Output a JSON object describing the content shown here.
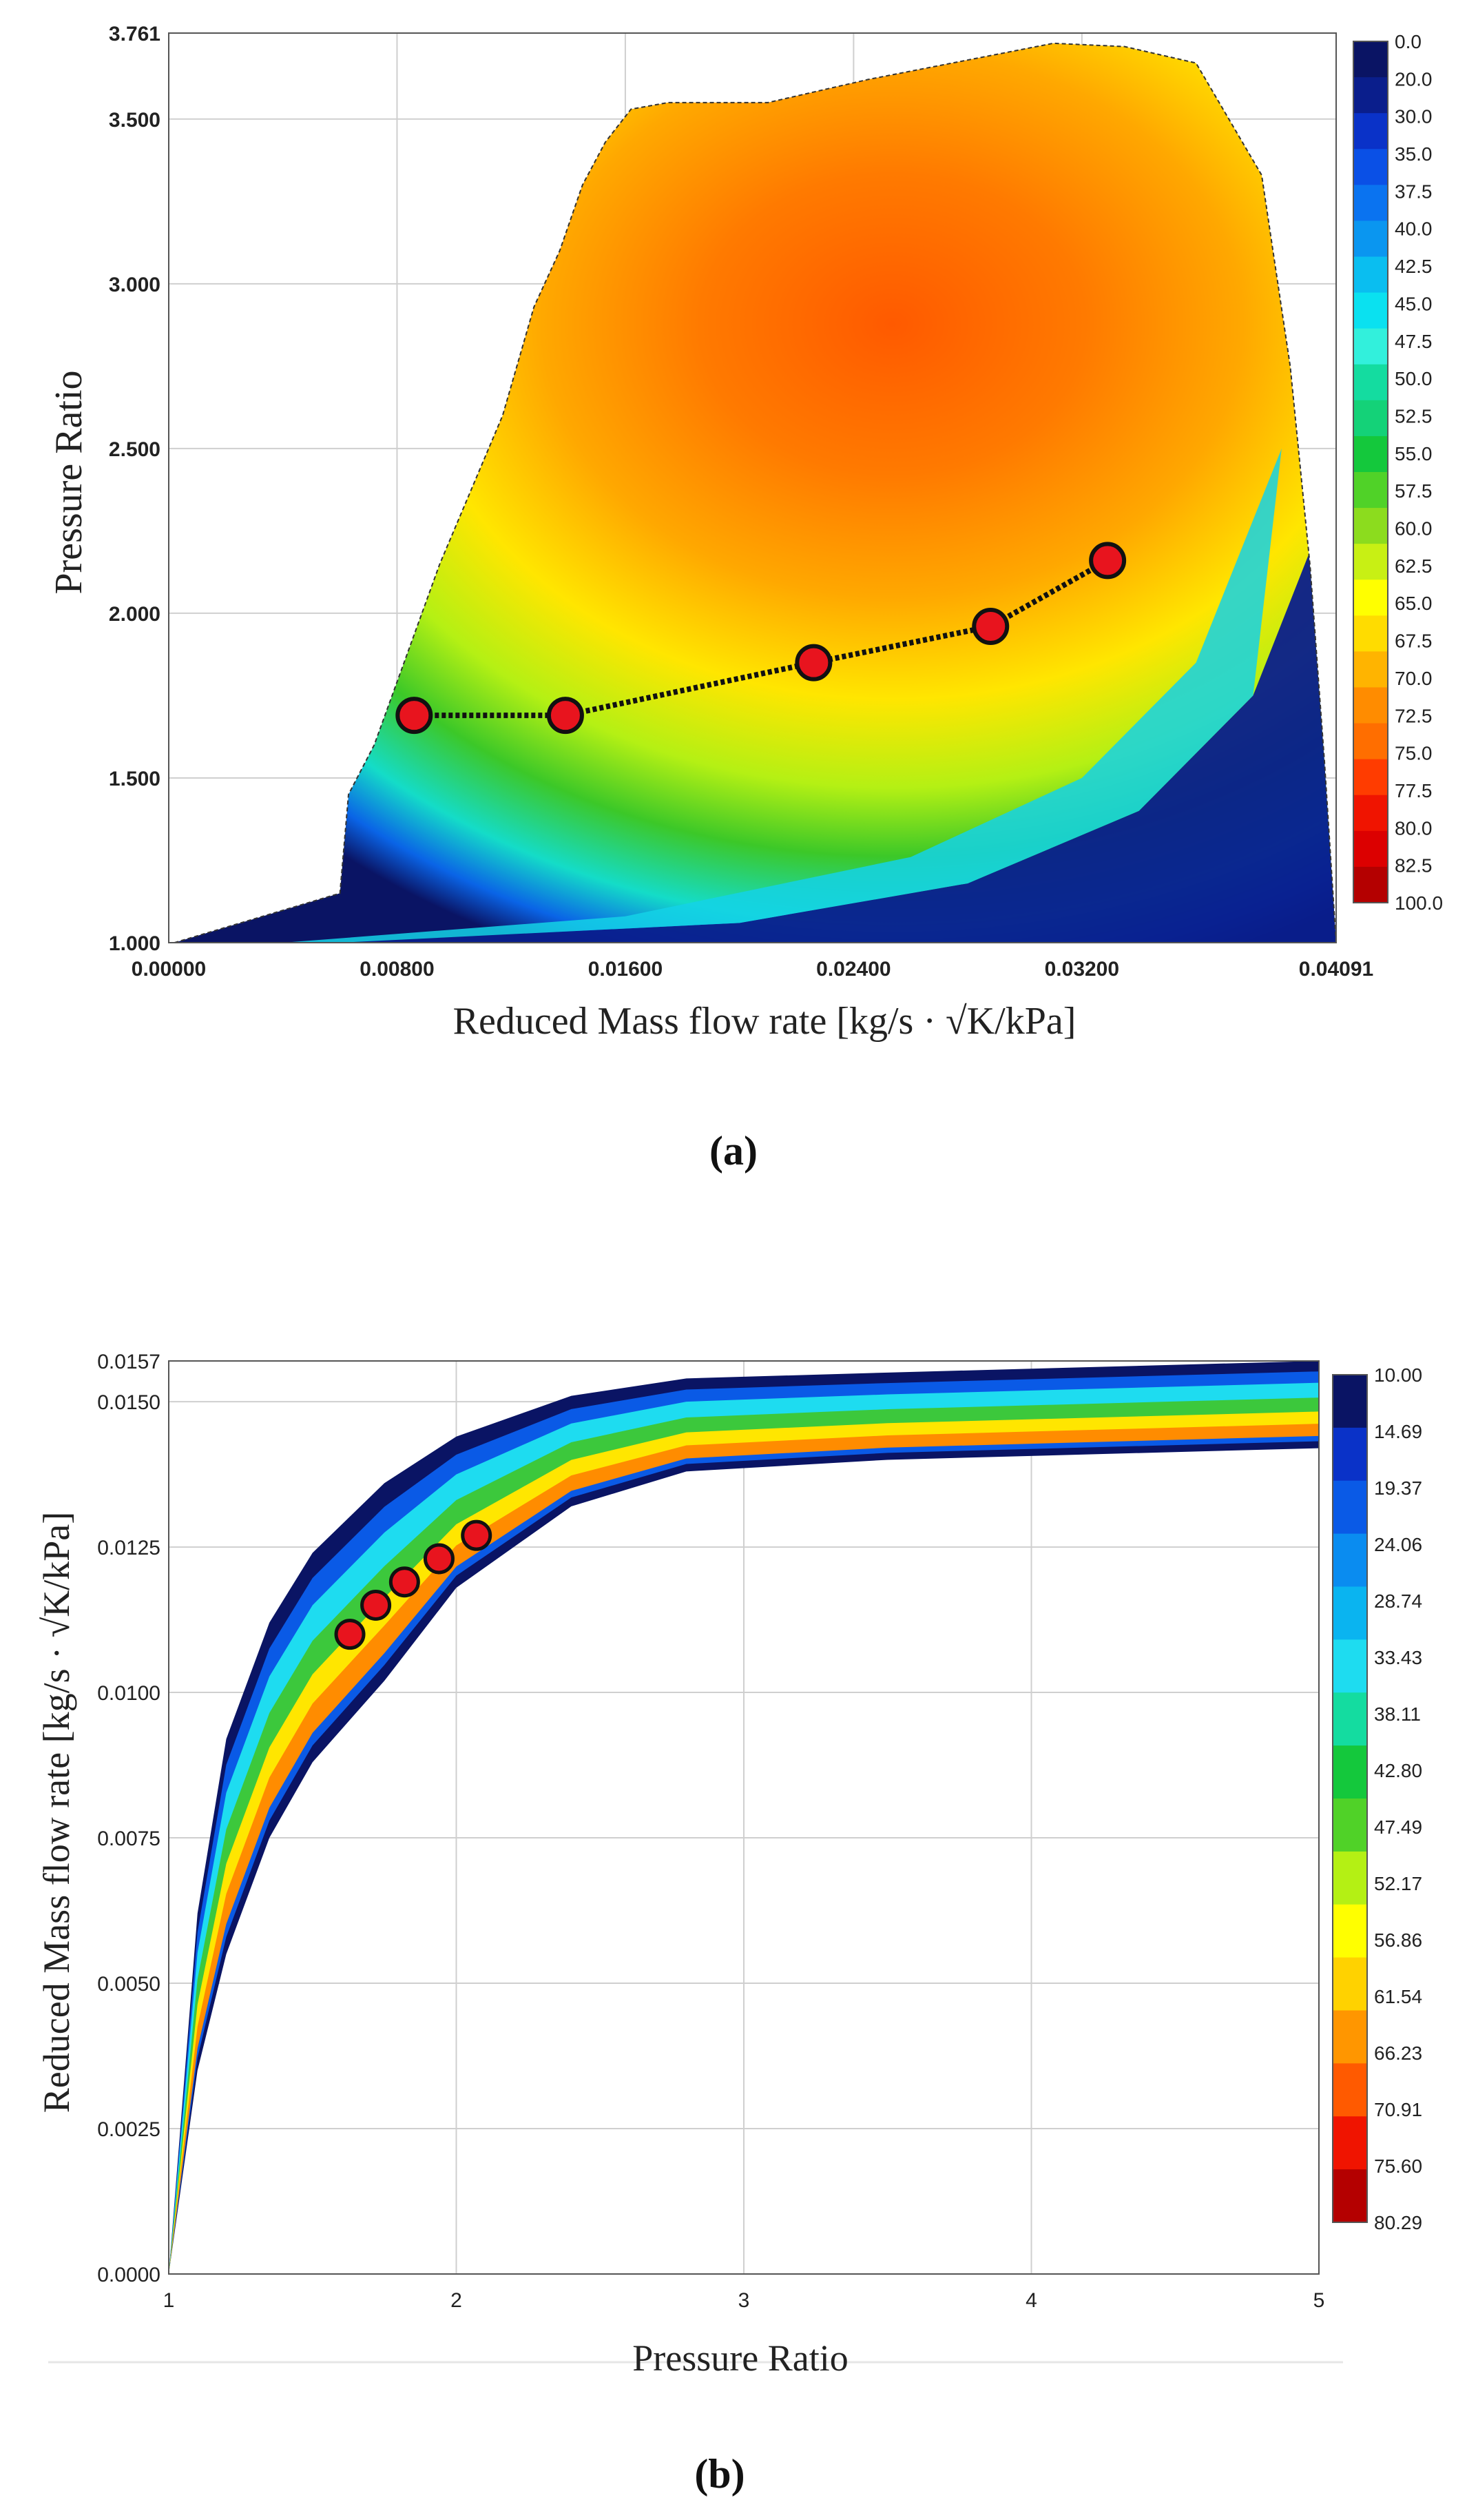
{
  "chart_data": [
    {
      "type": "heatmap",
      "panel_label": "(a)",
      "title": "",
      "xlabel": "Reduced Mass flow rate [kg/s · √K/kPa]",
      "ylabel": "Pressure Ratio",
      "xlim": [
        0.0,
        0.04091
      ],
      "ylim": [
        1.0,
        3.761
      ],
      "x_ticks": [
        0.0,
        0.008,
        0.016,
        0.024,
        0.032,
        0.04091
      ],
      "x_tick_labels": [
        "0.00000",
        "0.00800",
        "0.01600",
        "0.02400",
        "0.03200",
        "0.04091"
      ],
      "y_ticks": [
        1.0,
        1.5,
        2.0,
        2.5,
        3.0,
        3.5,
        3.761
      ],
      "y_tick_labels": [
        "1.000",
        "1.500",
        "2.000",
        "2.500",
        "3.000",
        "3.500",
        "3.761"
      ],
      "grid": true,
      "colorbar_labels": [
        "0.0",
        "20.0",
        "30.0",
        "35.0",
        "37.5",
        "40.0",
        "42.5",
        "45.0",
        "47.5",
        "50.0",
        "52.5",
        "55.0",
        "57.5",
        "60.0",
        "62.5",
        "65.0",
        "67.5",
        "70.0",
        "72.5",
        "75.0",
        "77.5",
        "80.0",
        "82.5",
        "100.0"
      ],
      "colorbar_colors": [
        "#0a1464",
        "#0a1e8c",
        "#0a32c8",
        "#0a50e6",
        "#0a73f0",
        "#0a96f0",
        "#0abef0",
        "#0ae1f0",
        "#32f0dc",
        "#14dca0",
        "#14d278",
        "#14c83c",
        "#50d228",
        "#8cdc1e",
        "#c8f014",
        "#ffff00",
        "#ffdc00",
        "#ffb400",
        "#ff8c00",
        "#ff6e00",
        "#ff3c00",
        "#f01400",
        "#dc0000",
        "#b40000"
      ],
      "boundary_points": [
        [
          0.0002,
          1.0
        ],
        [
          0.006,
          1.15
        ],
        [
          0.0063,
          1.45
        ],
        [
          0.0072,
          1.6
        ],
        [
          0.0095,
          2.15
        ],
        [
          0.0117,
          2.6
        ],
        [
          0.0128,
          2.93
        ],
        [
          0.0137,
          3.1
        ],
        [
          0.0145,
          3.3
        ],
        [
          0.0153,
          3.43
        ],
        [
          0.0162,
          3.53
        ],
        [
          0.0175,
          3.55
        ],
        [
          0.021,
          3.55
        ],
        [
          0.0245,
          3.62
        ],
        [
          0.031,
          3.73
        ],
        [
          0.0335,
          3.72
        ],
        [
          0.036,
          3.67
        ],
        [
          0.0383,
          3.33
        ],
        [
          0.0393,
          2.75
        ],
        [
          0.04,
          2.14
        ],
        [
          0.0405,
          1.55
        ],
        [
          0.04091,
          1.0
        ]
      ],
      "operating_points_label": "red circles",
      "operating_points": [
        [
          0.0086,
          1.69
        ],
        [
          0.0139,
          1.69
        ],
        [
          0.0226,
          1.85
        ],
        [
          0.0288,
          1.96
        ],
        [
          0.0329,
          2.16
        ]
      ]
    },
    {
      "type": "heatmap",
      "panel_label": "(b)",
      "title": "",
      "xlabel": "Pressure Ratio",
      "ylabel": "Reduced Mass flow rate [kg/s · √K/kPa]",
      "xlim": [
        1,
        5
      ],
      "ylim": [
        0.0,
        0.0157
      ],
      "x_ticks": [
        1,
        2,
        3,
        4,
        5
      ],
      "x_tick_labels": [
        "1",
        "2",
        "3",
        "4",
        "5"
      ],
      "y_ticks": [
        0.0,
        0.0025,
        0.005,
        0.0075,
        0.01,
        0.0125,
        0.015,
        0.0157
      ],
      "y_tick_labels": [
        "0.0000",
        "0.0025",
        "0.0050",
        "0.0075",
        "0.0100",
        "0.0125",
        "0.0150",
        "0.0157"
      ],
      "grid": true,
      "colorbar_labels": [
        "10.00",
        "14.69",
        "19.37",
        "24.06",
        "28.74",
        "33.43",
        "38.11",
        "42.80",
        "47.49",
        "52.17",
        "56.86",
        "61.54",
        "66.23",
        "70.91",
        "75.60",
        "80.29"
      ],
      "colorbar_colors": [
        "#0a1464",
        "#0a32c8",
        "#0a5ae6",
        "#0a8cf0",
        "#0ab4f0",
        "#1edcf0",
        "#14dca0",
        "#14c83c",
        "#50d228",
        "#b4f014",
        "#ffff00",
        "#ffd200",
        "#ff9600",
        "#ff5a00",
        "#f01400",
        "#b40000"
      ],
      "band_outer": [
        [
          1.0,
          0.0
        ],
        [
          1.1,
          0.0062
        ],
        [
          1.2,
          0.0092
        ],
        [
          1.35,
          0.0112
        ],
        [
          1.5,
          0.0124
        ],
        [
          1.75,
          0.0136
        ],
        [
          2.0,
          0.0144
        ],
        [
          2.4,
          0.0151
        ],
        [
          2.8,
          0.0154
        ],
        [
          3.5,
          0.0155
        ],
        [
          5.0,
          0.0157
        ]
      ],
      "band_inner": [
        [
          1.0,
          0.0
        ],
        [
          1.1,
          0.0035
        ],
        [
          1.2,
          0.0055
        ],
        [
          1.35,
          0.0075
        ],
        [
          1.5,
          0.0088
        ],
        [
          1.65,
          0.0102
        ],
        [
          2.0,
          0.0118
        ],
        [
          2.4,
          0.0132
        ],
        [
          2.8,
          0.0138
        ],
        [
          3.5,
          0.014
        ],
        [
          5.0,
          0.0142
        ]
      ],
      "operating_points_label": "red circles",
      "operating_points": [
        [
          1.63,
          0.011
        ],
        [
          1.72,
          0.0115
        ],
        [
          1.82,
          0.0119
        ],
        [
          1.94,
          0.0123
        ],
        [
          2.07,
          0.0127
        ]
      ]
    }
  ]
}
